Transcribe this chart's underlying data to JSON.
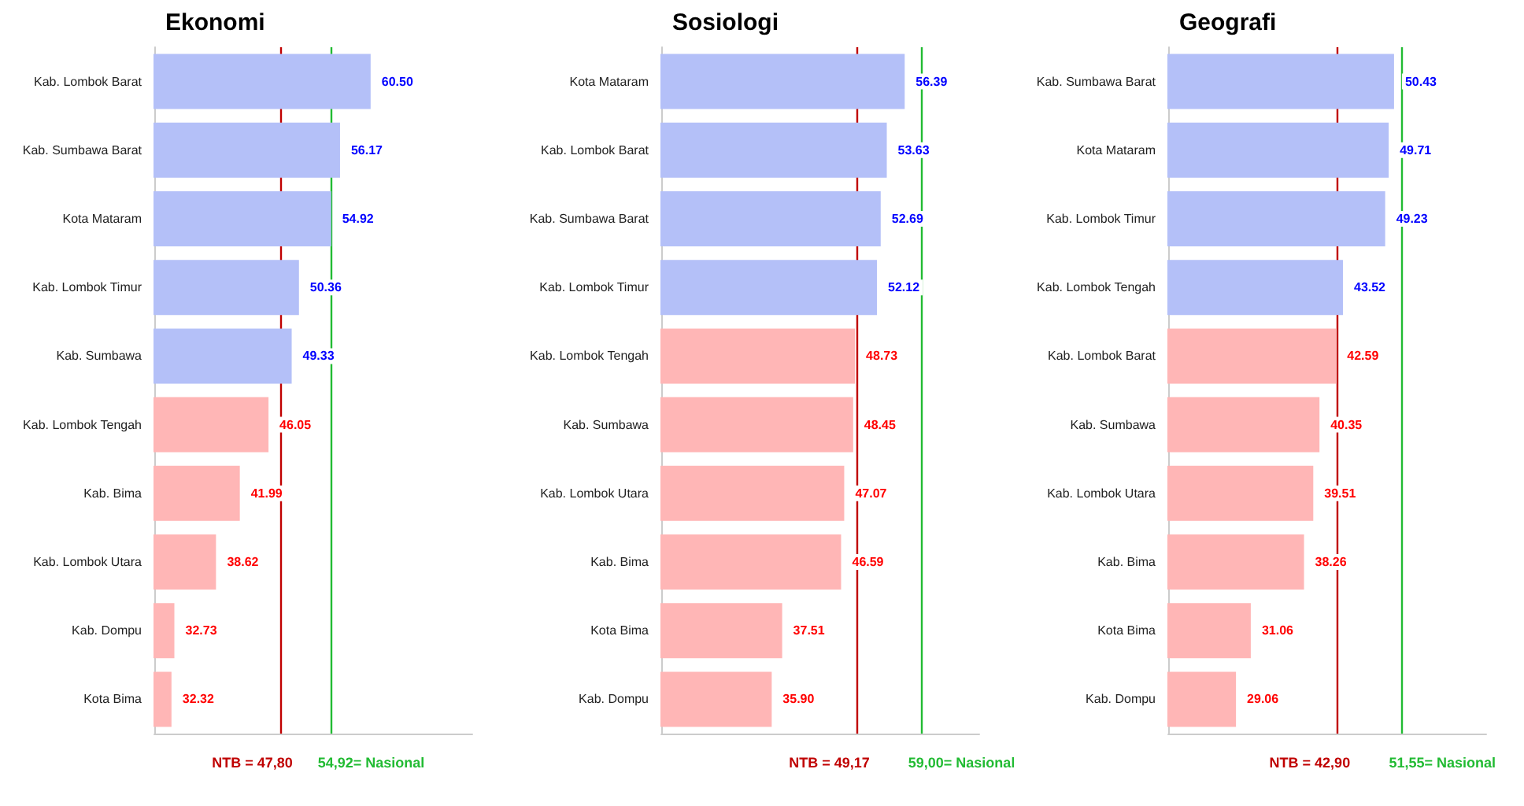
{
  "chart_data": [
    {
      "type": "bar",
      "orientation": "horizontal",
      "title": "Ekonomi",
      "categories": [
        "Kab. Lombok Barat",
        "Kab. Sumbawa Barat",
        "Kota Mataram",
        "Kab. Lombok Timur",
        "Kab. Sumbawa",
        "Kab. Lombok Tengah",
        "Kab. Bima",
        "Kab. Lombok Utara",
        "Kab. Dompu",
        "Kota Bima"
      ],
      "values": [
        60.5,
        56.17,
        54.92,
        50.36,
        49.33,
        46.05,
        41.99,
        38.62,
        32.73,
        32.32
      ],
      "value_labels": [
        "60.50",
        "56.17",
        "54.92",
        "50.36",
        "49.33",
        "46.05",
        "41.99",
        "38.62",
        "32.73",
        "32.32"
      ],
      "colors": [
        "#b4c0f8",
        "#b4c0f8",
        "#b4c0f8",
        "#b4c0f8",
        "#b4c0f8",
        "#ffb6b6",
        "#ffb6b6",
        "#ffb6b6",
        "#ffb6b6",
        "#ffb6b6"
      ],
      "xlim": [
        30,
        75
      ],
      "legend": "bottom",
      "ref_lines": [
        {
          "axis": "x",
          "value": 47.8,
          "label": "NTB = 47,80",
          "color": "#c00000"
        },
        {
          "axis": "x",
          "value": 54.92,
          "label": "54,92= Nasional",
          "color": "#22bb33"
        }
      ]
    },
    {
      "type": "bar",
      "orientation": "horizontal",
      "title": "Sosiologi",
      "categories": [
        "Kota Mataram",
        "Kab. Lombok Barat",
        "Kab. Sumbawa Barat",
        "Kab. Lombok Timur",
        "Kab. Lombok Tengah",
        "Kab. Sumbawa",
        "Kab. Lombok Utara",
        "Kab. Bima",
        "Kota Bima",
        "Kab. Dompu"
      ],
      "values": [
        56.39,
        53.63,
        52.69,
        52.12,
        48.73,
        48.45,
        47.07,
        46.59,
        37.51,
        35.9
      ],
      "value_labels": [
        "56.39",
        "53.63",
        "52.69",
        "52.12",
        "48.73",
        "48.45",
        "47.07",
        "46.59",
        "37.51",
        "35.90"
      ],
      "colors": [
        "#b4c0f8",
        "#b4c0f8",
        "#b4c0f8",
        "#b4c0f8",
        "#ffb6b6",
        "#ffb6b6",
        "#ffb6b6",
        "#ffb6b6",
        "#ffb6b6",
        "#ffb6b6"
      ],
      "xlim": [
        19,
        68
      ],
      "legend": "bottom",
      "ref_lines": [
        {
          "axis": "x",
          "value": 49.17,
          "label": "NTB = 49,17",
          "color": "#c00000"
        },
        {
          "axis": "x",
          "value": 59,
          "label": "59,00= Nasional",
          "color": "#22bb33"
        }
      ]
    },
    {
      "type": "bar",
      "orientation": "horizontal",
      "title": "Geografi",
      "categories": [
        "Kab. Sumbawa Barat",
        "Kota Mataram",
        "Kab. Lombok Timur",
        "Kab. Lombok Tengah",
        "Kab. Lombok Barat",
        "Kab. Sumbawa",
        "Kab. Lombok Utara",
        "Kab. Bima",
        "Kota Bima",
        "Kab. Dompu"
      ],
      "values": [
        50.43,
        49.71,
        49.23,
        43.52,
        42.59,
        40.35,
        39.51,
        38.26,
        31.06,
        29.06
      ],
      "value_labels": [
        "50.43",
        "49.71",
        "49.23",
        "43.52",
        "42.59",
        "40.35",
        "39.51",
        "38.26",
        "31.06",
        "29.06"
      ],
      "colors": [
        "#b4c0f8",
        "#b4c0f8",
        "#b4c0f8",
        "#b4c0f8",
        "#ffb6b6",
        "#ffb6b6",
        "#ffb6b6",
        "#ffb6b6",
        "#ffb6b6",
        "#ffb6b6"
      ],
      "xlim": [
        20,
        63
      ],
      "legend": "bottom",
      "ref_lines": [
        {
          "axis": "x",
          "value": 42.9,
          "label": "NTB = 42,90",
          "color": "#c00000"
        },
        {
          "axis": "x",
          "value": 51.55,
          "label": "51,55= Nasional",
          "color": "#22bb33"
        }
      ]
    }
  ]
}
